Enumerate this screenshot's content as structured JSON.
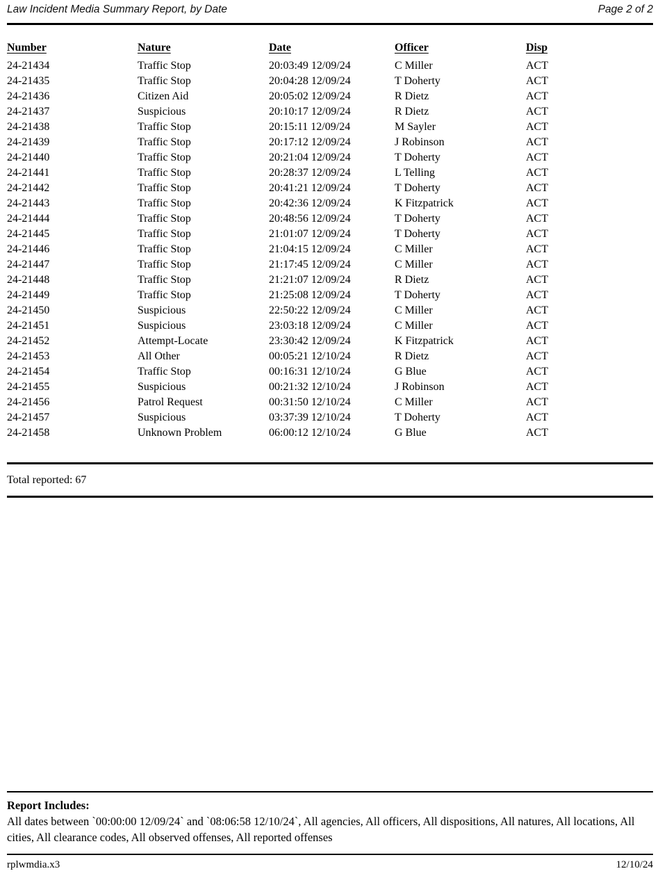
{
  "header": {
    "title": "Law Incident Media Summary Report, by Date",
    "page_indicator": "Page 2 of 2"
  },
  "table": {
    "columns": [
      "Number",
      "Nature",
      "Date",
      "Officer",
      "Disp"
    ],
    "rows": [
      {
        "number": "24-21434",
        "nature": "Traffic Stop",
        "date": "20:03:49 12/09/24",
        "officer": "C Miller",
        "disp": "ACT"
      },
      {
        "number": "24-21435",
        "nature": "Traffic Stop",
        "date": "20:04:28 12/09/24",
        "officer": "T Doherty",
        "disp": "ACT"
      },
      {
        "number": "24-21436",
        "nature": "Citizen Aid",
        "date": "20:05:02 12/09/24",
        "officer": "R Dietz",
        "disp": "ACT"
      },
      {
        "number": "24-21437",
        "nature": "Suspicious",
        "date": "20:10:17 12/09/24",
        "officer": "R Dietz",
        "disp": "ACT"
      },
      {
        "number": "24-21438",
        "nature": "Traffic Stop",
        "date": "20:15:11 12/09/24",
        "officer": "M Sayler",
        "disp": "ACT"
      },
      {
        "number": "24-21439",
        "nature": "Traffic Stop",
        "date": "20:17:12 12/09/24",
        "officer": "J Robinson",
        "disp": "ACT"
      },
      {
        "number": "24-21440",
        "nature": "Traffic Stop",
        "date": "20:21:04 12/09/24",
        "officer": "T Doherty",
        "disp": "ACT"
      },
      {
        "number": "24-21441",
        "nature": "Traffic Stop",
        "date": "20:28:37 12/09/24",
        "officer": "L Telling",
        "disp": "ACT"
      },
      {
        "number": "24-21442",
        "nature": "Traffic Stop",
        "date": "20:41:21 12/09/24",
        "officer": "T Doherty",
        "disp": "ACT"
      },
      {
        "number": "24-21443",
        "nature": "Traffic Stop",
        "date": "20:42:36 12/09/24",
        "officer": "K Fitzpatrick",
        "disp": "ACT"
      },
      {
        "number": "24-21444",
        "nature": "Traffic Stop",
        "date": "20:48:56 12/09/24",
        "officer": "T Doherty",
        "disp": "ACT"
      },
      {
        "number": "24-21445",
        "nature": "Traffic Stop",
        "date": "21:01:07 12/09/24",
        "officer": "T Doherty",
        "disp": "ACT"
      },
      {
        "number": "24-21446",
        "nature": "Traffic Stop",
        "date": "21:04:15 12/09/24",
        "officer": "C Miller",
        "disp": "ACT"
      },
      {
        "number": "24-21447",
        "nature": "Traffic Stop",
        "date": "21:17:45 12/09/24",
        "officer": "C Miller",
        "disp": "ACT"
      },
      {
        "number": "24-21448",
        "nature": "Traffic Stop",
        "date": "21:21:07 12/09/24",
        "officer": "R Dietz",
        "disp": "ACT"
      },
      {
        "number": "24-21449",
        "nature": "Traffic Stop",
        "date": "21:25:08 12/09/24",
        "officer": "T Doherty",
        "disp": "ACT"
      },
      {
        "number": "24-21450",
        "nature": "Suspicious",
        "date": "22:50:22 12/09/24",
        "officer": "C Miller",
        "disp": "ACT"
      },
      {
        "number": "24-21451",
        "nature": "Suspicious",
        "date": "23:03:18 12/09/24",
        "officer": "C Miller",
        "disp": "ACT"
      },
      {
        "number": "24-21452",
        "nature": "Attempt-Locate",
        "date": "23:30:42 12/09/24",
        "officer": "K Fitzpatrick",
        "disp": "ACT"
      },
      {
        "number": "24-21453",
        "nature": "All Other",
        "date": "00:05:21 12/10/24",
        "officer": "R Dietz",
        "disp": "ACT"
      },
      {
        "number": "24-21454",
        "nature": "Traffic Stop",
        "date": "00:16:31 12/10/24",
        "officer": "G Blue",
        "disp": "ACT"
      },
      {
        "number": "24-21455",
        "nature": "Suspicious",
        "date": "00:21:32 12/10/24",
        "officer": "J Robinson",
        "disp": "ACT"
      },
      {
        "number": "24-21456",
        "nature": "Patrol Request",
        "date": "00:31:50 12/10/24",
        "officer": "C Miller",
        "disp": "ACT"
      },
      {
        "number": "24-21457",
        "nature": "Suspicious",
        "date": "03:37:39 12/10/24",
        "officer": "T Doherty",
        "disp": "ACT"
      },
      {
        "number": "24-21458",
        "nature": "Unknown Problem",
        "date": "06:00:12 12/10/24",
        "officer": "G Blue",
        "disp": "ACT"
      }
    ]
  },
  "summary": {
    "total_label": "Total reported:",
    "total_value": "67"
  },
  "report_includes": {
    "heading": "Report Includes:",
    "text": "All dates between `00:00:00 12/09/24` and `08:06:58 12/10/24`, All agencies, All officers, All dispositions, All natures, All locations, All cities, All clearance codes, All observed offenses, All reported offenses"
  },
  "footer": {
    "left": "rplwmdia.x3",
    "right": "12/10/24"
  },
  "colors": {
    "text": "#000000",
    "background": "#ffffff"
  }
}
